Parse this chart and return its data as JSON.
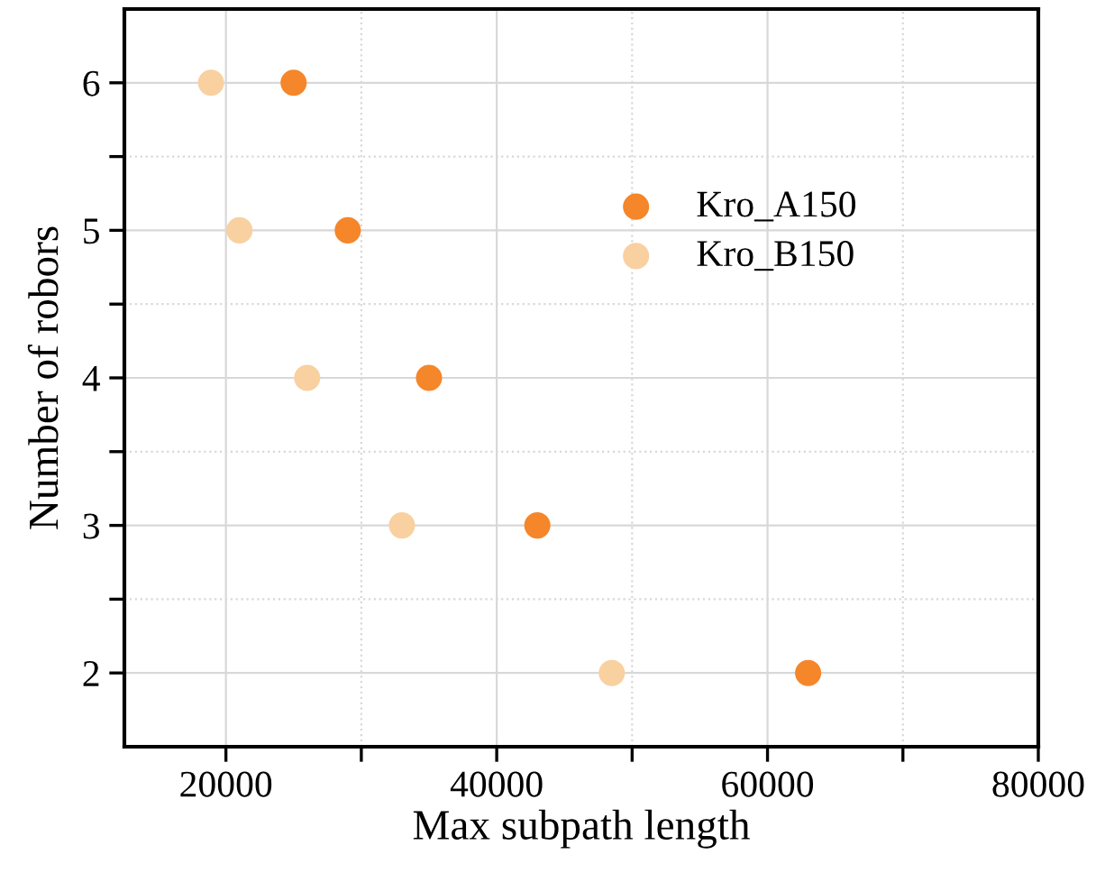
{
  "chart_data": {
    "type": "scatter",
    "xlabel": "Max subpath length",
    "ylabel": "Number of robors",
    "series": [
      {
        "name": "Kro_A150",
        "color": "#f5862a",
        "x": [
          25000,
          29000,
          35000,
          43000,
          63000
        ],
        "values": [
          6,
          5,
          4,
          3,
          2
        ]
      },
      {
        "name": "Kro_B150",
        "color": "#f9d0a0",
        "x": [
          18900,
          21000,
          26000,
          33000,
          48500
        ],
        "values": [
          6,
          5,
          4,
          3,
          2
        ]
      }
    ],
    "xlim": [
      12500,
      80000
    ],
    "ylim": [
      1.5,
      6.5
    ],
    "xticks": [
      20000,
      {
        "value": 30000,
        "label": null
      },
      40000,
      {
        "value": 50000,
        "label": null
      },
      60000,
      {
        "value": 70000,
        "label": null
      },
      80000
    ],
    "yticks": [
      2,
      {
        "value": 2.5,
        "label": null
      },
      3,
      {
        "value": 3.5,
        "label": null
      },
      4,
      {
        "value": 4.5,
        "label": null
      },
      5,
      {
        "value": 5.5,
        "label": null
      },
      6
    ],
    "grid": true,
    "legend": "top right",
    "marker": "circle"
  }
}
